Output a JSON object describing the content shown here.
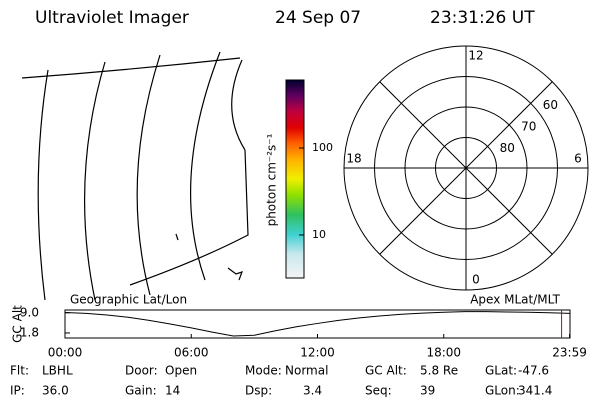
{
  "header": {
    "title": "Ultraviolet Imager",
    "date": "24 Sep 07",
    "time": "23:31:26 UT"
  },
  "colorbar": {
    "label": "photon cm⁻²s⁻¹",
    "scale": "log",
    "lim": [
      3.2,
      605
    ],
    "ticks": [
      10,
      100
    ]
  },
  "polar": {
    "lat_lim": [
      50,
      90
    ],
    "lat_ticks": [
      60,
      70,
      80
    ],
    "mlt_ticks": [
      12,
      18,
      6,
      0
    ]
  },
  "chart_data": {
    "type": "line",
    "title_left": "Geographic Lat/Lon",
    "title_right": "Apex MLat/MLT",
    "ylabel": "GC Alt",
    "x": [
      0,
      1,
      2,
      3,
      4,
      5,
      6,
      7,
      8,
      9,
      10,
      11,
      12,
      13,
      14,
      15,
      16,
      17,
      18,
      19,
      20,
      21,
      22,
      23,
      24
    ],
    "series": [
      {
        "name": "GC Alt",
        "color": "#000000",
        "values": [
          9.1,
          8.8,
          8.2,
          7.4,
          6.3,
          5.0,
          3.6,
          2.1,
          0.7,
          1.0,
          2.6,
          4.0,
          5.2,
          6.3,
          7.2,
          7.9,
          8.5,
          8.9,
          9.2,
          9.4,
          9.4,
          9.3,
          9.2,
          9.0,
          8.8
        ]
      }
    ],
    "xlim": [
      0,
      24
    ],
    "ylim": [
      0,
      10
    ],
    "xticks": [
      {
        "value": 0,
        "label": "00:00"
      },
      {
        "value": 6,
        "label": "06:00"
      },
      {
        "value": 12,
        "label": "12:00"
      },
      {
        "value": 18,
        "label": "18:00"
      },
      {
        "value": 23.98,
        "label": "23:59"
      }
    ],
    "yticks": [
      {
        "value": 9,
        "label": "9.0"
      },
      {
        "value": 1.8,
        "label": "1.8"
      }
    ],
    "marker_x": 23.6,
    "marker_color": "#cc0000"
  },
  "footer": {
    "rows": [
      [
        {
          "label": "Flt:",
          "value": "LBHL"
        },
        {
          "label": "Door:",
          "value": "Open"
        },
        {
          "label": "Mode:",
          "value": "Normal"
        },
        {
          "label": "GC Alt:",
          "value": "5.8 Re"
        },
        {
          "label": "GLat:",
          "value": "-47.6"
        }
      ],
      [
        {
          "label": "IP:",
          "value": "36.0"
        },
        {
          "label": "Gain:",
          "value": "14"
        },
        {
          "label": "Dsp:",
          "value": "3.4"
        },
        {
          "label": "Seq:",
          "value": "39"
        },
        {
          "label": "GLon:",
          "value": "341.4"
        }
      ]
    ]
  }
}
